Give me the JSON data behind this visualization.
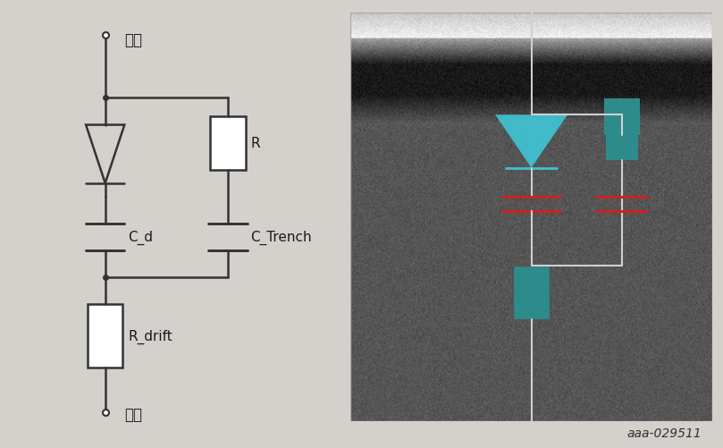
{
  "bg_color": "#d4d0cb",
  "line_color": "#1a1a1a",
  "circuit_line_color": "#333333",
  "teal_color": "#2d8b8b",
  "cyan_color": "#40c0d0",
  "red_color": "#cc2222",
  "white_line_color": "#e0e0e0",
  "label_yangji": "阳极",
  "label_yinji": "阴极",
  "label_cd": "C_d",
  "label_ctrench": "C_Trench",
  "label_r": "R",
  "label_rdrift": "R_drift",
  "watermark": "aaa-029511",
  "fig_width": 8.09,
  "fig_height": 5.02
}
